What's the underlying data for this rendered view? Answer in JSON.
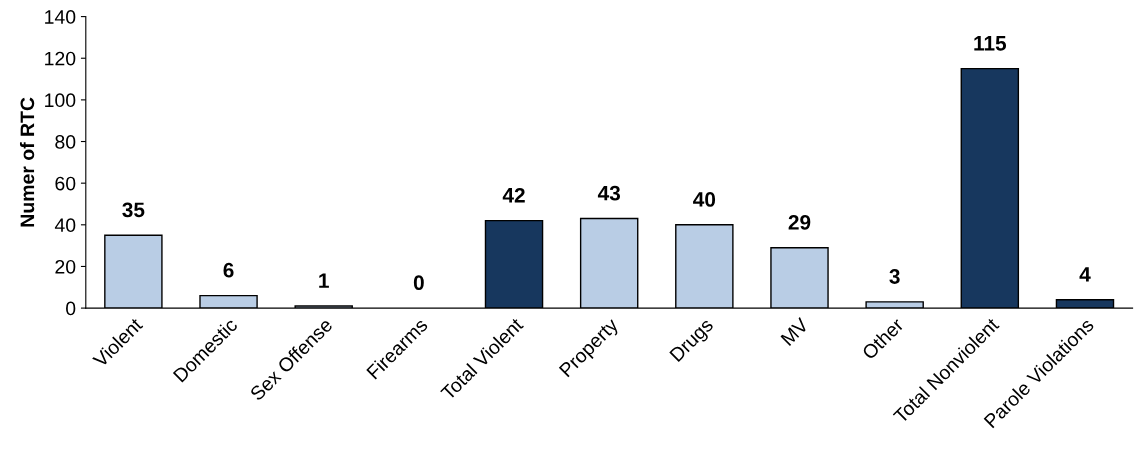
{
  "chart_data": {
    "type": "bar",
    "ylabel": "Numer of RTC",
    "categories": [
      "Violent",
      "Domestic",
      "Sex Offense",
      "Firearms",
      "Total Violent",
      "Property",
      "Drugs",
      "MV",
      "Other",
      "Total Nonviolent",
      "Parole Violations"
    ],
    "values": [
      35,
      6,
      1,
      0,
      42,
      43,
      40,
      29,
      3,
      115,
      4
    ],
    "colors": [
      "#b9cde5",
      "#b9cde5",
      "#b9cde5",
      "#b9cde5",
      "#17375e",
      "#b9cde5",
      "#b9cde5",
      "#b9cde5",
      "#b9cde5",
      "#17375e",
      "#17375e"
    ],
    "ylim": [
      0,
      140
    ],
    "yticks": [
      0,
      20,
      40,
      60,
      80,
      100,
      120,
      140
    ],
    "grid": false,
    "data_labels": true
  }
}
